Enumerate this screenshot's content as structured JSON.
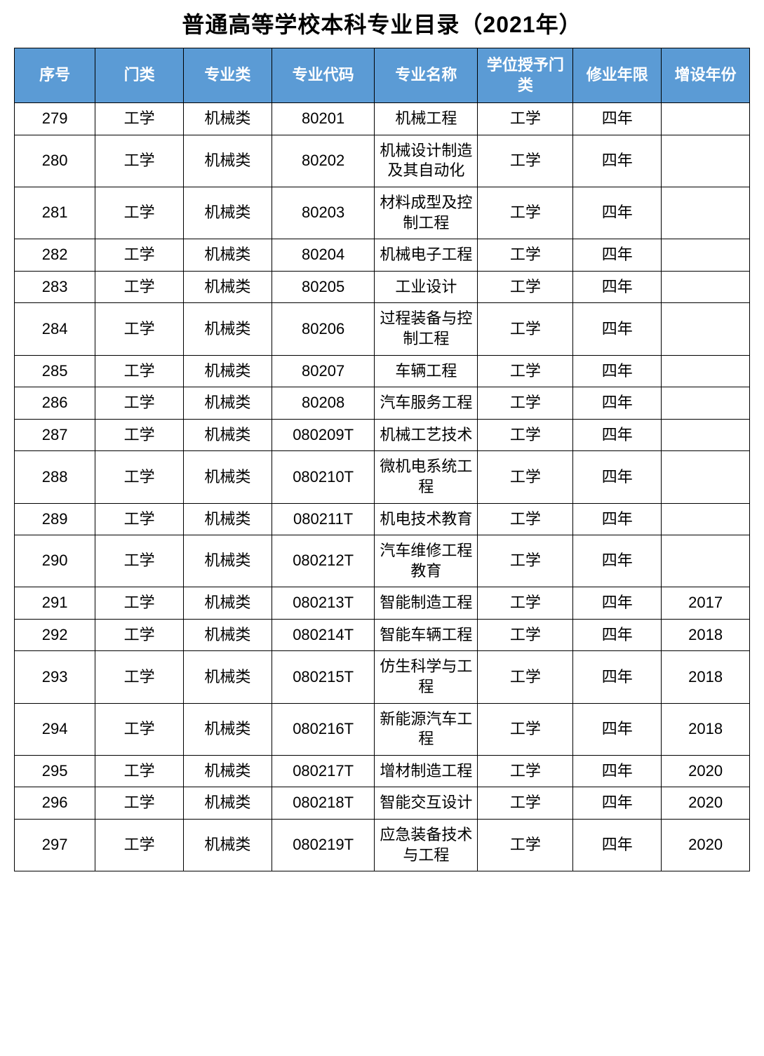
{
  "title": "普通高等学校本科专业目录（2021年）",
  "table": {
    "header_bg": "#5b9bd5",
    "header_fg": "#ffffff",
    "border_color": "#000000",
    "cell_bg": "#ffffff",
    "cell_fg": "#000000",
    "title_fontsize": 32,
    "header_fontsize": 22,
    "cell_fontsize": 22,
    "columns": [
      "序号",
      "门类",
      "专业类",
      "专业代码",
      "专业名称",
      "学位授予门类",
      "修业年限",
      "增设年份"
    ],
    "column_widths_pct": [
      11,
      12,
      12,
      14,
      14,
      13,
      12,
      12
    ],
    "rows": [
      [
        "279",
        "工学",
        "机械类",
        "80201",
        "机械工程",
        "工学",
        "四年",
        ""
      ],
      [
        "280",
        "工学",
        "机械类",
        "80202",
        "机械设计制造及其自动化",
        "工学",
        "四年",
        ""
      ],
      [
        "281",
        "工学",
        "机械类",
        "80203",
        "材料成型及控制工程",
        "工学",
        "四年",
        ""
      ],
      [
        "282",
        "工学",
        "机械类",
        "80204",
        "机械电子工程",
        "工学",
        "四年",
        ""
      ],
      [
        "283",
        "工学",
        "机械类",
        "80205",
        "工业设计",
        "工学",
        "四年",
        ""
      ],
      [
        "284",
        "工学",
        "机械类",
        "80206",
        "过程装备与控制工程",
        "工学",
        "四年",
        ""
      ],
      [
        "285",
        "工学",
        "机械类",
        "80207",
        "车辆工程",
        "工学",
        "四年",
        ""
      ],
      [
        "286",
        "工学",
        "机械类",
        "80208",
        "汽车服务工程",
        "工学",
        "四年",
        ""
      ],
      [
        "287",
        "工学",
        "机械类",
        "080209T",
        "机械工艺技术",
        "工学",
        "四年",
        ""
      ],
      [
        "288",
        "工学",
        "机械类",
        "080210T",
        "微机电系统工程",
        "工学",
        "四年",
        ""
      ],
      [
        "289",
        "工学",
        "机械类",
        "080211T",
        "机电技术教育",
        "工学",
        "四年",
        ""
      ],
      [
        "290",
        "工学",
        "机械类",
        "080212T",
        "汽车维修工程教育",
        "工学",
        "四年",
        ""
      ],
      [
        "291",
        "工学",
        "机械类",
        "080213T",
        "智能制造工程",
        "工学",
        "四年",
        "2017"
      ],
      [
        "292",
        "工学",
        "机械类",
        "080214T",
        "智能车辆工程",
        "工学",
        "四年",
        "2018"
      ],
      [
        "293",
        "工学",
        "机械类",
        "080215T",
        "仿生科学与工程",
        "工学",
        "四年",
        "2018"
      ],
      [
        "294",
        "工学",
        "机械类",
        "080216T",
        "新能源汽车工程",
        "工学",
        "四年",
        "2018"
      ],
      [
        "295",
        "工学",
        "机械类",
        "080217T",
        "增材制造工程",
        "工学",
        "四年",
        "2020"
      ],
      [
        "296",
        "工学",
        "机械类",
        "080218T",
        "智能交互设计",
        "工学",
        "四年",
        "2020"
      ],
      [
        "297",
        "工学",
        "机械类",
        "080219T",
        "应急装备技术与工程",
        "工学",
        "四年",
        "2020"
      ]
    ]
  }
}
